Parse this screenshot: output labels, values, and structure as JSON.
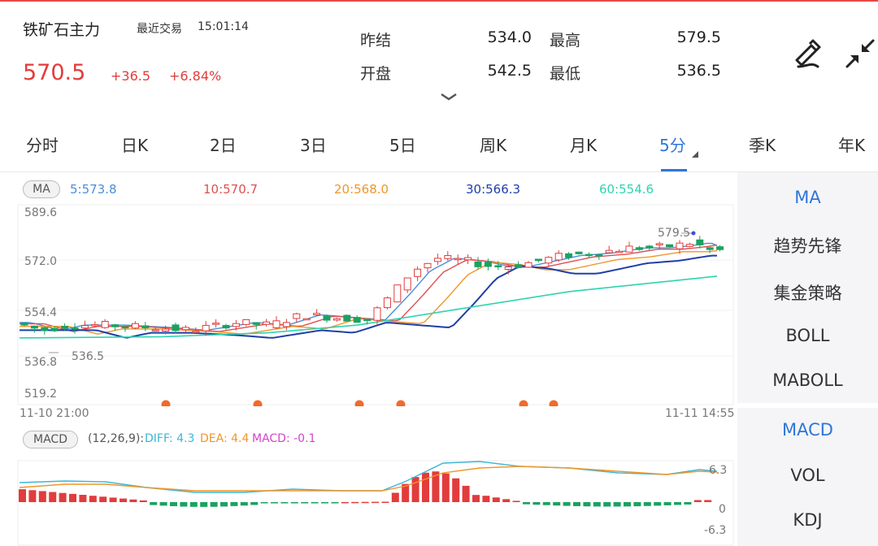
{
  "header": {
    "name": "铁矿石主力",
    "status": "最近交易",
    "time": "15:01:14",
    "price": "570.5",
    "change": "+36.5",
    "change_pct": "+6.84%"
  },
  "quotes": {
    "prev_settle_label": "昨结",
    "prev_settle": "534.0",
    "open_label": "开盘",
    "open": "542.5",
    "high_label": "最高",
    "high": "579.5",
    "low_label": "最低",
    "low": "536.5"
  },
  "tabs": [
    "分时",
    "日K",
    "2日",
    "3日",
    "5日",
    "周K",
    "月K",
    "5分",
    "季K",
    "年K"
  ],
  "active_tab": "5分",
  "ma": {
    "button": "MA",
    "labels": [
      {
        "text": "5:573.8",
        "color": "#4a90d9"
      },
      {
        "text": "10:570.7",
        "color": "#e05050"
      },
      {
        "text": "20:568.0",
        "color": "#f0962a"
      },
      {
        "text": "30:566.3",
        "color": "#1f3fa8"
      },
      {
        "text": "60:554.6",
        "color": "#2ed3b0"
      }
    ]
  },
  "axis": {
    "y_ticks": [
      "589.6",
      "572.0",
      "554.4",
      "519.2"
    ],
    "high_marker": "579.5",
    "low_marker_1": "536.8",
    "low_marker_2": "536.5",
    "x_start": "11-10 21:00",
    "x_end": "11-11 14:55"
  },
  "macd": {
    "button": "MACD",
    "params": "(12,26,9):",
    "diff": "DIFF: 4.3",
    "dea": "DEA: 4.4",
    "macd": "MACD: -0.1",
    "tick_top": "6.3",
    "tick_mid": "0",
    "tick_bottom": "-6.3"
  },
  "side_menu": [
    "MA",
    "趋势先锋",
    "集金策略",
    "BOLL",
    "MABOLL",
    "MACD",
    "VOL",
    "KDJ"
  ],
  "colors": {
    "up": "#e23c3c",
    "down": "#1aa260",
    "accent": "#2f76d8"
  },
  "icons": [
    "draw-pen-icon",
    "collapse-fullscreen-icon",
    "chevron-down-icon"
  ]
}
